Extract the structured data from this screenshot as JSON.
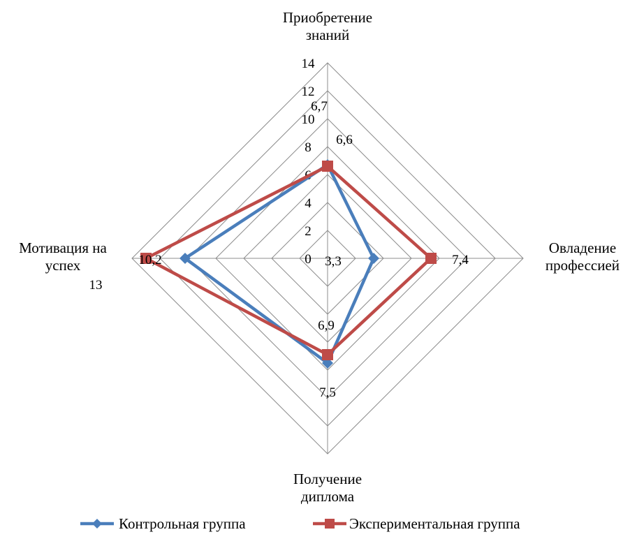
{
  "chart_data": {
    "type": "radar",
    "axes": [
      {
        "lines": [
          "Приобретение",
          "знаний"
        ]
      },
      {
        "lines": [
          "Овладение",
          "профессией"
        ]
      },
      {
        "lines": [
          "Получение",
          "диплома"
        ]
      },
      {
        "lines": [
          "Мотивация на",
          "успех"
        ]
      }
    ],
    "rlim": [
      0,
      14
    ],
    "ticks": [
      "0",
      "2",
      "4",
      "6",
      "8",
      "10",
      "12",
      "14"
    ],
    "grid": true,
    "legend_position": "bottom",
    "series": [
      {
        "name": "Контрольная группа",
        "color": "#4a7ebb",
        "marker": "diamond",
        "values": [
          6.7,
          3.3,
          7.5,
          10.2
        ],
        "labels": [
          "6,7",
          "3,3",
          "7,5",
          "10,2"
        ]
      },
      {
        "name": "Экспериментальная группа",
        "color": "#be4b48",
        "marker": "square",
        "values": [
          6.6,
          7.4,
          6.9,
          13
        ],
        "labels": [
          "6,6",
          "7,4",
          "6,9",
          "13"
        ]
      }
    ]
  }
}
